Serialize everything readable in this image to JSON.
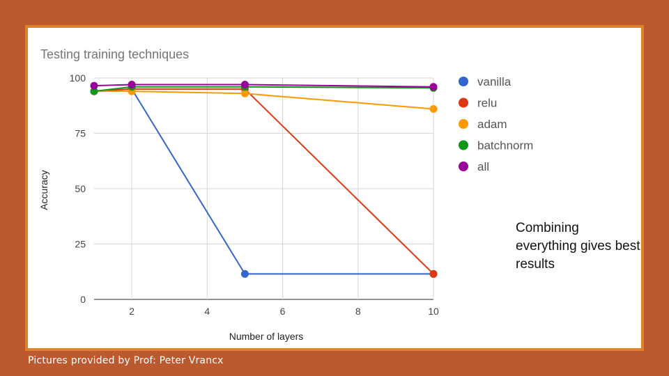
{
  "chart_data": {
    "type": "line",
    "title": "Testing training techniques",
    "xlabel": "Number of layers",
    "ylabel": "Accuracy",
    "xlim": [
      1,
      10
    ],
    "ylim": [
      0,
      100
    ],
    "xticks": [
      2,
      4,
      6,
      8,
      10
    ],
    "yticks": [
      0,
      25,
      50,
      75,
      100
    ],
    "grid": true,
    "legend_position": "right",
    "x": [
      1,
      2,
      5,
      10
    ],
    "series": [
      {
        "name": "vanilla",
        "color": "#3366CC",
        "values": [
          94,
          95,
          11.5,
          11.5
        ]
      },
      {
        "name": "relu",
        "color": "#DC3912",
        "values": [
          94,
          95,
          95,
          11.5
        ]
      },
      {
        "name": "adam",
        "color": "#FF9900",
        "values": [
          94,
          94,
          93,
          86
        ]
      },
      {
        "name": "batchnorm",
        "color": "#109618",
        "values": [
          94,
          96,
          96,
          95.5
        ]
      },
      {
        "name": "all",
        "color": "#990099",
        "values": [
          96.5,
          97,
          97,
          96
        ]
      }
    ]
  },
  "annotation": "Combining everything gives best results",
  "credit": "Pictures provided by Prof: Peter Vrancx"
}
